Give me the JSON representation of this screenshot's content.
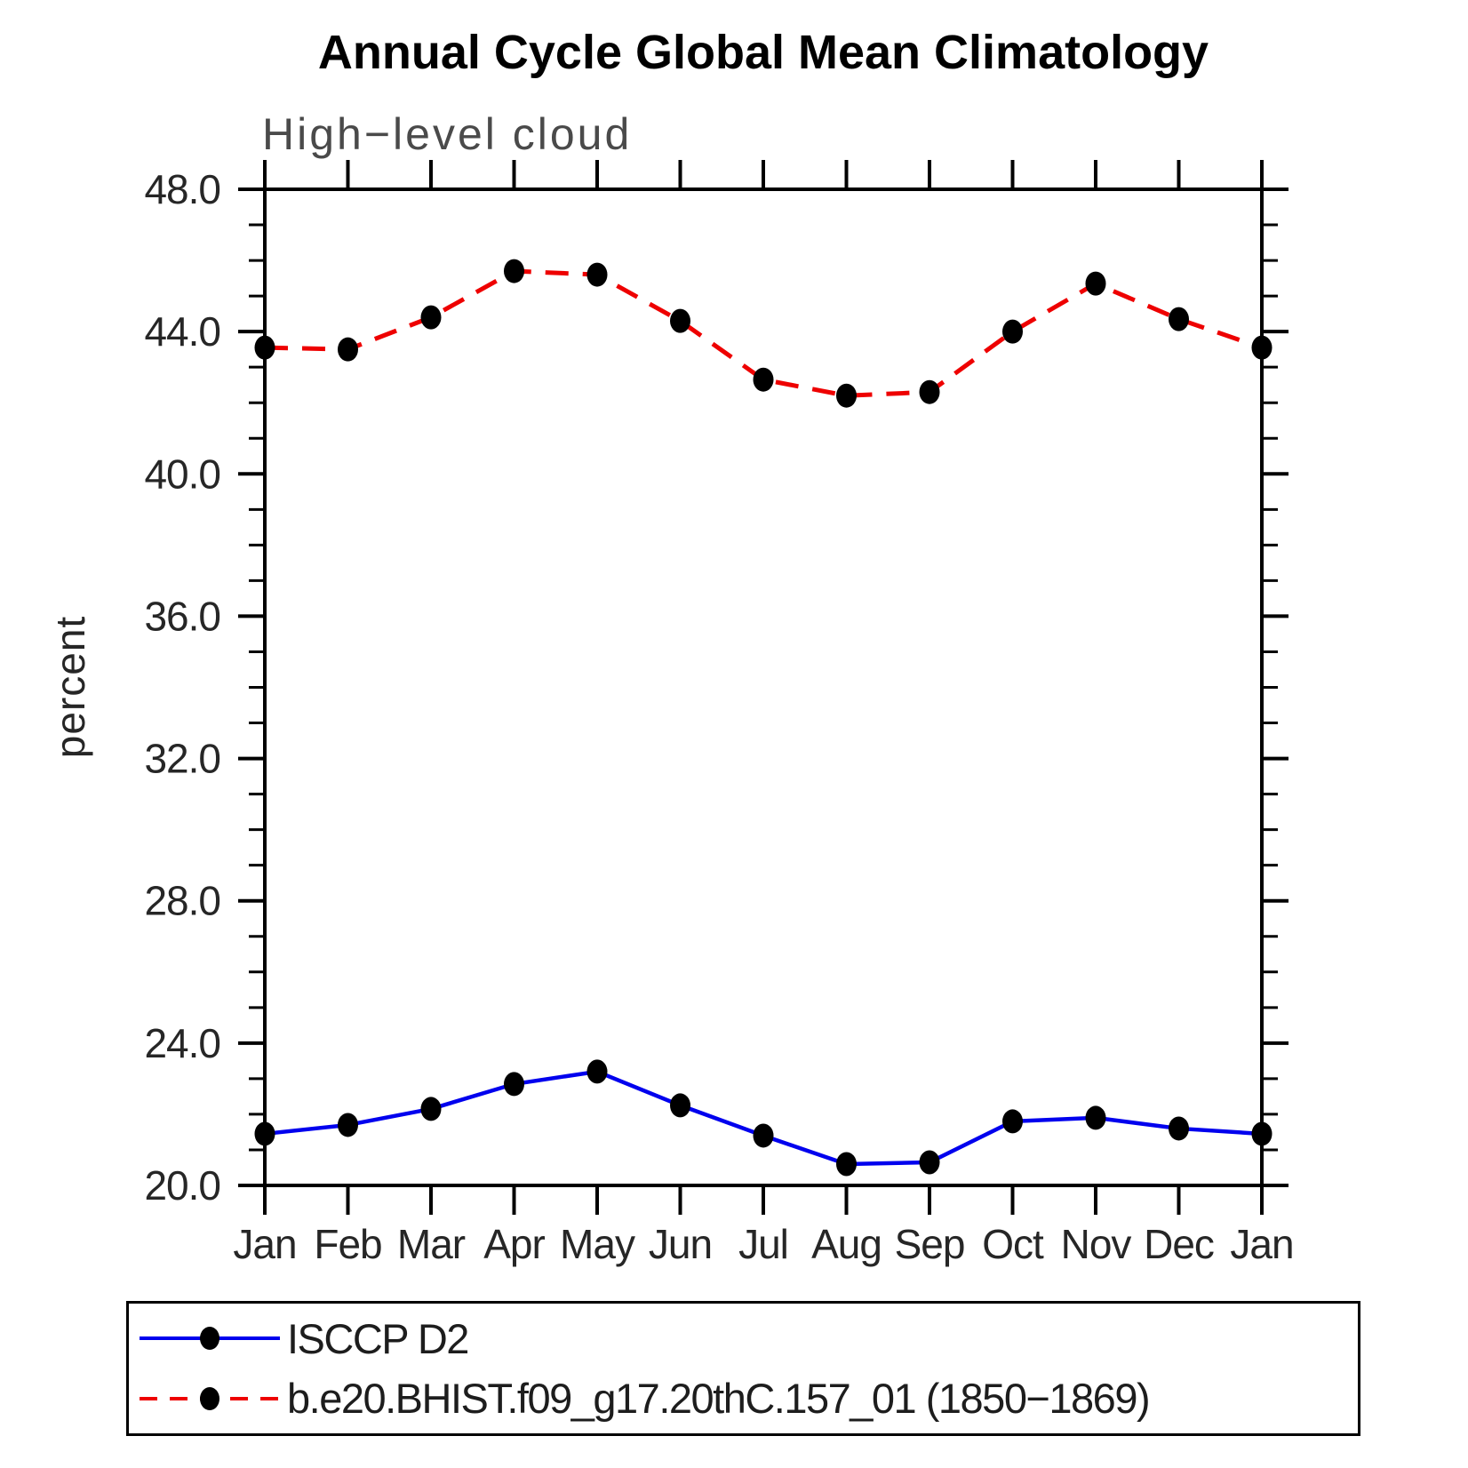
{
  "header": {
    "title": "Annual Cycle Global Mean Climatology",
    "subtitle": "High−level cloud"
  },
  "chart_data": {
    "type": "line",
    "title": "Annual Cycle Global Mean Climatology",
    "subtitle": "High−level cloud",
    "xlabel": "",
    "ylabel": "percent",
    "categories": [
      "Jan",
      "Feb",
      "Mar",
      "Apr",
      "May",
      "Jun",
      "Jul",
      "Aug",
      "Sep",
      "Oct",
      "Nov",
      "Dec",
      "Jan"
    ],
    "ylim": [
      20.0,
      48.0
    ],
    "ytick_step": 4.0,
    "yminor_step": 1.0,
    "ytick_labels": [
      "20.0",
      "24.0",
      "28.0",
      "32.0",
      "36.0",
      "40.0",
      "44.0",
      "48.0"
    ],
    "grid": "off",
    "legend_position": "bottom",
    "marker": "filled-circle",
    "marker_color": "#000000",
    "axis_color": "#000000",
    "series": [
      {
        "name": "ISCCP D2",
        "color": "#0000ee",
        "line_style": "solid",
        "values": [
          21.45,
          21.7,
          22.15,
          22.85,
          23.2,
          22.25,
          21.4,
          20.6,
          20.65,
          21.8,
          21.9,
          21.6,
          21.45
        ]
      },
      {
        "name": "b.e20.BHIST.f09_g17.20thC.157_01 (1850−1869)",
        "color": "#ee0000",
        "line_style": "dashed",
        "values": [
          43.55,
          43.5,
          44.4,
          45.7,
          45.6,
          44.3,
          42.65,
          42.2,
          42.3,
          44.0,
          45.35,
          44.35,
          43.55
        ]
      }
    ]
  }
}
